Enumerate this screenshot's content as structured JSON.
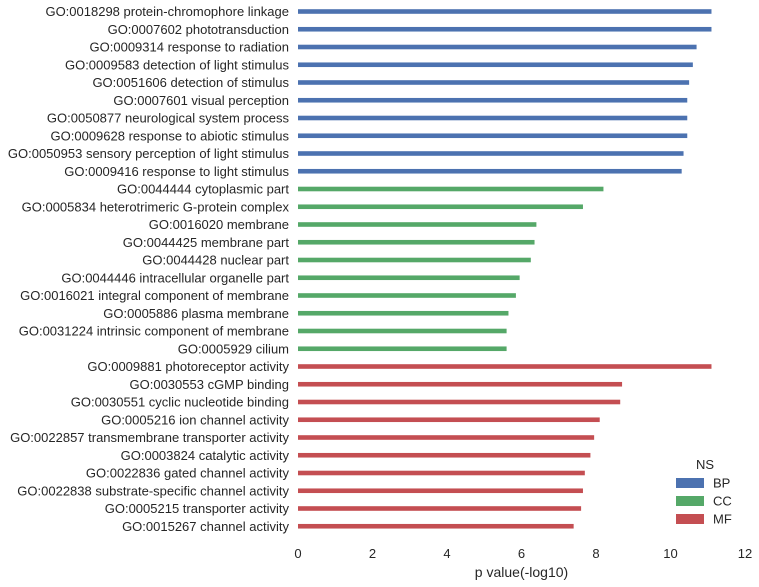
{
  "chart_data": {
    "type": "bar",
    "orientation": "horizontal",
    "xlabel": "p value(-log10)",
    "xlim": [
      0,
      12
    ],
    "xticks": [
      0,
      2,
      4,
      6,
      8,
      10,
      12
    ],
    "grid": false,
    "legend": {
      "title": "NS",
      "placement": "bottom-right",
      "entries": [
        {
          "name": "BP",
          "color": "#4c72b0"
        },
        {
          "name": "CC",
          "color": "#55a868"
        },
        {
          "name": "MF",
          "color": "#c44e52"
        }
      ]
    },
    "bars": [
      {
        "label": "GO:0018298 protein-chromophore linkage",
        "value": 11.1,
        "ns": "BP"
      },
      {
        "label": "GO:0007602 phototransduction",
        "value": 11.1,
        "ns": "BP"
      },
      {
        "label": "GO:0009314 response to radiation",
        "value": 10.7,
        "ns": "BP"
      },
      {
        "label": "GO:0009583 detection of light stimulus",
        "value": 10.6,
        "ns": "BP"
      },
      {
        "label": "GO:0051606 detection of stimulus",
        "value": 10.5,
        "ns": "BP"
      },
      {
        "label": "GO:0007601 visual perception",
        "value": 10.45,
        "ns": "BP"
      },
      {
        "label": "GO:0050877 neurological system process",
        "value": 10.45,
        "ns": "BP"
      },
      {
        "label": "GO:0009628 response to abiotic stimulus",
        "value": 10.45,
        "ns": "BP"
      },
      {
        "label": "GO:0050953 sensory perception of light stimulus",
        "value": 10.35,
        "ns": "BP"
      },
      {
        "label": "GO:0009416 response to light stimulus",
        "value": 10.3,
        "ns": "BP"
      },
      {
        "label": "GO:0044444 cytoplasmic part",
        "value": 8.2,
        "ns": "CC"
      },
      {
        "label": "GO:0005834 heterotrimeric G-protein complex",
        "value": 7.65,
        "ns": "CC"
      },
      {
        "label": "GO:0016020 membrane",
        "value": 6.4,
        "ns": "CC"
      },
      {
        "label": "GO:0044425 membrane part",
        "value": 6.35,
        "ns": "CC"
      },
      {
        "label": "GO:0044428 nuclear part",
        "value": 6.25,
        "ns": "CC"
      },
      {
        "label": "GO:0044446 intracellular organelle part",
        "value": 5.95,
        "ns": "CC"
      },
      {
        "label": "GO:0016021 integral component of membrane",
        "value": 5.85,
        "ns": "CC"
      },
      {
        "label": "GO:0005886 plasma membrane",
        "value": 5.65,
        "ns": "CC"
      },
      {
        "label": "GO:0031224 intrinsic component of membrane",
        "value": 5.6,
        "ns": "CC"
      },
      {
        "label": "GO:0005929 cilium",
        "value": 5.6,
        "ns": "CC"
      },
      {
        "label": "GO:0009881 photoreceptor activity",
        "value": 11.1,
        "ns": "MF"
      },
      {
        "label": "GO:0030553 cGMP binding",
        "value": 8.7,
        "ns": "MF"
      },
      {
        "label": "GO:0030551 cyclic nucleotide binding",
        "value": 8.65,
        "ns": "MF"
      },
      {
        "label": "GO:0005216 ion channel activity",
        "value": 8.1,
        "ns": "MF"
      },
      {
        "label": "GO:0022857 transmembrane transporter activity",
        "value": 7.95,
        "ns": "MF"
      },
      {
        "label": "GO:0003824 catalytic activity",
        "value": 7.85,
        "ns": "MF"
      },
      {
        "label": "GO:0022836 gated channel activity",
        "value": 7.7,
        "ns": "MF"
      },
      {
        "label": "GO:0022838 substrate-specific channel activity",
        "value": 7.65,
        "ns": "MF"
      },
      {
        "label": "GO:0005215 transporter activity",
        "value": 7.6,
        "ns": "MF"
      },
      {
        "label": "GO:0015267 channel activity",
        "value": 7.4,
        "ns": "MF"
      }
    ]
  }
}
